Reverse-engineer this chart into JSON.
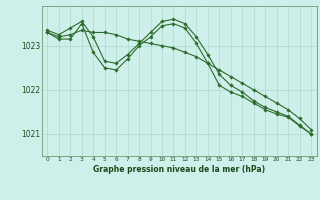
{
  "background_color": "#cff0ea",
  "grid_color": "#aad8d0",
  "line_color": "#2d6b2d",
  "marker_color": "#2d6b2d",
  "xlabel": "Graphe pression niveau de la mer (hPa)",
  "ylim": [
    1020.5,
    1023.9
  ],
  "yticks": [
    1021,
    1022,
    1023
  ],
  "xlim": [
    -0.5,
    23.5
  ],
  "xticks": [
    0,
    1,
    2,
    3,
    4,
    5,
    6,
    7,
    8,
    9,
    10,
    11,
    12,
    13,
    14,
    15,
    16,
    17,
    18,
    19,
    20,
    21,
    22,
    23
  ],
  "line1": [
    1023.35,
    1023.25,
    1023.4,
    1023.55,
    1023.2,
    1022.65,
    1022.6,
    1022.8,
    1023.05,
    1023.3,
    1023.55,
    1023.6,
    1023.5,
    1023.2,
    1022.8,
    1022.35,
    1022.1,
    1021.95,
    1021.75,
    1021.6,
    1021.5,
    1021.4,
    1021.2,
    1021.0
  ],
  "line2": [
    1023.3,
    1023.15,
    1023.15,
    1023.5,
    1022.85,
    1022.5,
    1022.45,
    1022.7,
    1023.0,
    1023.2,
    1023.45,
    1023.5,
    1023.4,
    1023.05,
    1022.6,
    1022.1,
    1021.95,
    1021.85,
    1021.7,
    1021.55,
    1021.45,
    1021.38,
    1021.18,
    1021.0
  ],
  "line3": [
    1023.3,
    1023.2,
    1023.25,
    1023.35,
    1023.3,
    1023.3,
    1023.25,
    1023.15,
    1023.1,
    1023.05,
    1023.0,
    1022.95,
    1022.85,
    1022.75,
    1022.6,
    1022.45,
    1022.3,
    1022.15,
    1022.0,
    1021.85,
    1021.7,
    1021.55,
    1021.35,
    1021.1
  ],
  "ylabel_fontsize": 5.5,
  "xlabel_fontsize": 5.5,
  "tick_fontsize": 4.2,
  "linewidth": 0.8,
  "markersize": 1.8
}
